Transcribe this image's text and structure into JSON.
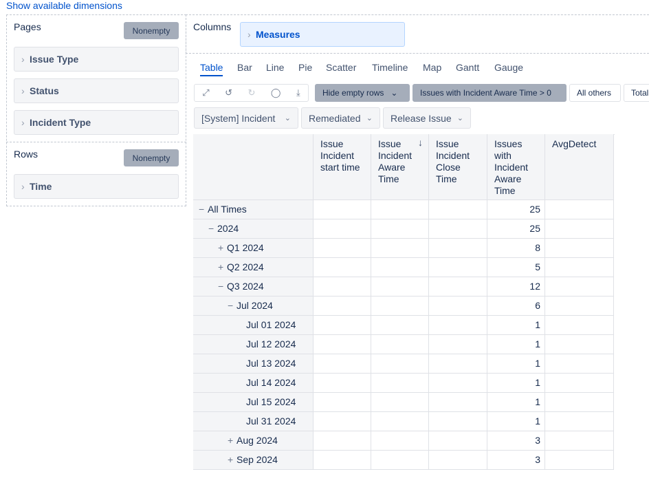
{
  "link": "Show available dimensions",
  "pages": {
    "title": "Pages",
    "button": "Nonempty",
    "items": [
      "Issue Type",
      "Status",
      "Incident Type"
    ]
  },
  "rows": {
    "title": "Rows",
    "button": "Nonempty",
    "items": [
      "Time"
    ]
  },
  "columns": {
    "title": "Columns",
    "items": [
      "Measures"
    ]
  },
  "tabs": {
    "items": [
      "Table",
      "Bar",
      "Line",
      "Pie",
      "Scatter",
      "Timeline",
      "Map",
      "Gantt",
      "Gauge"
    ],
    "active": 0
  },
  "toolbar": {
    "hide_empty": "Hide empty rows",
    "filters": [
      "Issues with Incident Aware Time > 0",
      "All others",
      "Total"
    ]
  },
  "selectors": [
    "[System] Incident",
    "Remediated",
    "Release Issue"
  ],
  "table": {
    "headers": [
      "Issue Incident start time",
      "Issue Incident Aware Time",
      "Issue Incident Close Time",
      "Issues with Incident Aware Time",
      "AvgDetect"
    ],
    "rows": [
      {
        "label": "All Times",
        "level": 0,
        "toggle": "collapse",
        "value": 25
      },
      {
        "label": "2024",
        "level": 1,
        "toggle": "collapse",
        "value": 25
      },
      {
        "label": "Q1 2024",
        "level": 2,
        "toggle": "expand",
        "value": 8
      },
      {
        "label": "Q2 2024",
        "level": 2,
        "toggle": "expand",
        "value": 5
      },
      {
        "label": "Q3 2024",
        "level": 2,
        "toggle": "collapse",
        "value": 12
      },
      {
        "label": "Jul 2024",
        "level": 3,
        "toggle": "collapse",
        "value": 6
      },
      {
        "label": "Jul 01 2024",
        "level": 4,
        "toggle": null,
        "value": 1
      },
      {
        "label": "Jul 12 2024",
        "level": 4,
        "toggle": null,
        "value": 1
      },
      {
        "label": "Jul 13 2024",
        "level": 4,
        "toggle": null,
        "value": 1
      },
      {
        "label": "Jul 14 2024",
        "level": 4,
        "toggle": null,
        "value": 1
      },
      {
        "label": "Jul 15 2024",
        "level": 4,
        "toggle": null,
        "value": 1
      },
      {
        "label": "Jul 31 2024",
        "level": 4,
        "toggle": null,
        "value": 1
      },
      {
        "label": "Aug 2024",
        "level": 3,
        "toggle": "expand",
        "value": 3
      },
      {
        "label": "Sep 2024",
        "level": 3,
        "toggle": "expand",
        "value": 3
      }
    ]
  }
}
